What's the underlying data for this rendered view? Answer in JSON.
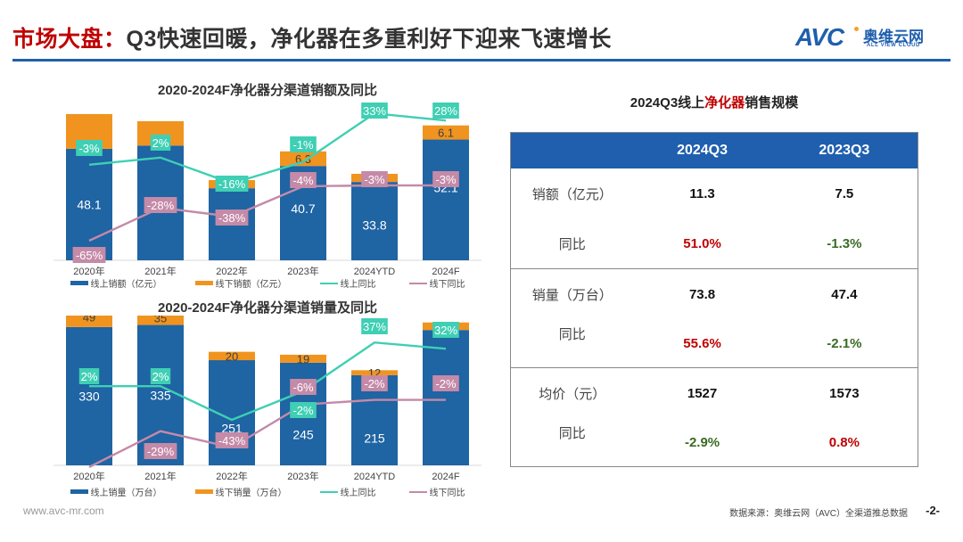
{
  "header": {
    "title_highlight": "市场大盘：",
    "title_rest": "Q3快速回暖，净化器在多重利好下迎来飞速增长",
    "logo_mark": "AVC",
    "logo_cn": "奥维云网",
    "logo_en": "ALL VIEW CLOUD"
  },
  "colors": {
    "online_bar": "#1f64a3",
    "offline_bar": "#f0941f",
    "online_yoy": "#3fcfb4",
    "offline_yoy": "#c48aa8",
    "positive": "#c00000",
    "negative": "#3a6b22",
    "brand": "#1f5fae"
  },
  "chart_data": [
    {
      "type": "bar",
      "stacked": true,
      "title": "2020-2024F净化器分渠道销额及同比",
      "categories": [
        "2020年",
        "2021年",
        "2022年",
        "2023年",
        "2024YTD",
        "2024F"
      ],
      "series": [
        {
          "name": "线上销额（亿元）",
          "kind": "bar",
          "values": [
            48.1,
            49.5,
            31.1,
            40.7,
            33.8,
            52.1
          ],
          "labels": [
            "48.1",
            "",
            "",
            "40.7",
            "33.8",
            "52.1"
          ]
        },
        {
          "name": "线下销额（亿元）",
          "kind": "bar",
          "values": [
            15.0,
            10.5,
            3.5,
            6.3,
            3.5,
            6.1
          ],
          "labels": [
            "",
            "",
            "3.5",
            "6.3",
            "",
            "6.1"
          ]
        },
        {
          "name": "线上同比",
          "kind": "line",
          "values": [
            -3,
            2,
            -16,
            -1,
            33,
            28
          ],
          "labels": [
            "-3%",
            "2%",
            "-16%",
            "-1%",
            "33%",
            "28%"
          ]
        },
        {
          "name": "线下同比",
          "kind": "line",
          "values": [
            -65,
            -28,
            -38,
            -4,
            -3,
            -3
          ],
          "labels": [
            "-65%",
            "-28%",
            "-38%",
            "-4%",
            "-3%",
            "-3%"
          ]
        }
      ],
      "legend": "bottom"
    },
    {
      "type": "bar",
      "stacked": true,
      "title": "2020-2024F净化器分渠道销量及同比",
      "categories": [
        "2020年",
        "2021年",
        "2022年",
        "2023年",
        "2024YTD",
        "2024F"
      ],
      "series": [
        {
          "name": "线上销量（万台）",
          "kind": "bar",
          "values": [
            330,
            335,
            251,
            245,
            215,
            323
          ],
          "labels": [
            "330",
            "335",
            "251",
            "245",
            "215",
            "323"
          ]
        },
        {
          "name": "线下销量（万台）",
          "kind": "bar",
          "values": [
            49,
            35,
            20,
            19,
            12,
            18
          ],
          "labels": [
            "49",
            "35",
            "20",
            "19",
            "12",
            ""
          ]
        },
        {
          "name": "线上同比",
          "kind": "line",
          "values": [
            2,
            2,
            -25,
            -2,
            37,
            32
          ],
          "labels": [
            "2%",
            "2%",
            "",
            "-2%",
            "37%",
            "32%"
          ]
        },
        {
          "name": "线下同比",
          "kind": "line",
          "values": [
            -60,
            -29,
            -43,
            -6,
            -2,
            -2
          ],
          "labels": [
            "",
            "-29%",
            "-43%",
            "-6%",
            "-2%",
            "-2%"
          ]
        }
      ],
      "legend": "bottom"
    }
  ],
  "table": {
    "title_pre": "2024Q3线上",
    "title_highlight": "净化器",
    "title_post": "销售规模",
    "headers": [
      "",
      "2024Q3",
      "2023Q3"
    ],
    "groups": [
      {
        "label": "销额（亿元）",
        "values": [
          "11.3",
          "7.5"
        ],
        "yoy_label": "同比",
        "yoy": [
          "51.0%",
          "-1.3%"
        ],
        "yoy_sign": [
          "pos",
          "neg"
        ]
      },
      {
        "label": "销量（万台）",
        "values": [
          "73.8",
          "47.4"
        ],
        "yoy_label": "同比",
        "yoy": [
          "55.6%",
          "-2.1%"
        ],
        "yoy_sign": [
          "pos",
          "neg"
        ]
      },
      {
        "label": "均价（元）",
        "values": [
          "1527",
          "1573"
        ],
        "yoy_label": "同比",
        "yoy": [
          "-2.9%",
          "0.8%"
        ],
        "yoy_sign": [
          "neg",
          "pos"
        ]
      }
    ]
  },
  "footer": {
    "website": "www.avc-mr.com",
    "source": "数据来源：奥维云网（AVC）全渠道推总数据",
    "page": "-2-"
  }
}
